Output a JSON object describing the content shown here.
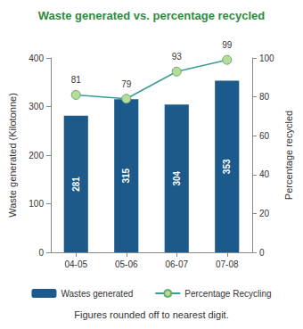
{
  "chart_data": {
    "type": "bar",
    "title": "Waste generated vs. percentage recycled",
    "footnote": "Figures rounded off to nearest digit.",
    "categories": [
      "04-05",
      "05-06",
      "06-07",
      "07-08"
    ],
    "ylabel": "Waste generated (Kilotonne)",
    "y2label": "Percentage recycled",
    "ylim": [
      0,
      400
    ],
    "yticks": [
      0,
      100,
      200,
      300,
      400
    ],
    "y2lim": [
      0,
      100
    ],
    "y2ticks": [
      0,
      20,
      40,
      60,
      80,
      100
    ],
    "grid": false,
    "legend": "bottom",
    "data_labels": true,
    "series": [
      {
        "name": "Wastes generated",
        "type": "bar",
        "color": "#1b5a8a",
        "values": [
          281,
          315,
          304,
          353
        ]
      },
      {
        "name": "Percentage Recycling",
        "type": "line",
        "axis": "y2",
        "color": "#3a9c9a",
        "marker": "circle",
        "values": [
          81,
          79,
          93,
          99
        ]
      }
    ]
  }
}
